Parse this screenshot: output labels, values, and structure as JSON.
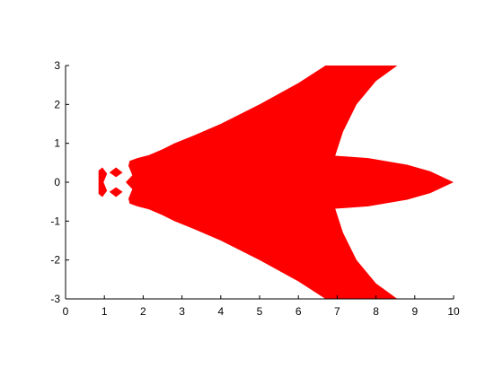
{
  "chart_data": {
    "type": "area",
    "title": "",
    "xlabel": "",
    "ylabel": "",
    "xlim": [
      0,
      10
    ],
    "ylim": [
      -3,
      3
    ],
    "grid": false,
    "legend": "none",
    "fill_color": "#ff0000",
    "x_ticks": [
      0,
      1,
      2,
      3,
      4,
      5,
      6,
      7,
      8,
      9,
      10
    ],
    "x_tick_labels": [
      "0",
      "1",
      "2",
      "3",
      "4",
      "5",
      "6",
      "7",
      "8",
      "9",
      "10"
    ],
    "y_ticks": [
      3,
      2,
      1,
      0,
      -1,
      -2,
      -3
    ],
    "y_tick_labels": [
      "3",
      "2",
      "1",
      "0",
      "-1",
      "-2",
      "-3"
    ],
    "regions": [
      {
        "name": "main-body",
        "points": [
          [
            1.55,
            0.0
          ],
          [
            1.72,
            0.18
          ],
          [
            1.62,
            0.42
          ],
          [
            1.65,
            0.55
          ],
          [
            1.85,
            0.62
          ],
          [
            2.15,
            0.7
          ],
          [
            2.5,
            0.85
          ],
          [
            2.8,
            1.0
          ],
          [
            3.3,
            1.2
          ],
          [
            4.0,
            1.5
          ],
          [
            5.0,
            2.0
          ],
          [
            6.0,
            2.55
          ],
          [
            6.7,
            3.0
          ],
          [
            8.55,
            3.0
          ],
          [
            8.0,
            2.6
          ],
          [
            7.5,
            2.0
          ],
          [
            7.15,
            1.3
          ],
          [
            6.95,
            0.68
          ],
          [
            7.8,
            0.62
          ],
          [
            8.8,
            0.45
          ],
          [
            9.4,
            0.28
          ],
          [
            10.0,
            0.0
          ],
          [
            9.4,
            -0.28
          ],
          [
            8.8,
            -0.45
          ],
          [
            7.8,
            -0.62
          ],
          [
            6.95,
            -0.68
          ],
          [
            7.15,
            -1.3
          ],
          [
            7.5,
            -2.0
          ],
          [
            8.0,
            -2.6
          ],
          [
            8.55,
            -3.0
          ],
          [
            6.7,
            -3.0
          ],
          [
            6.0,
            -2.55
          ],
          [
            5.0,
            -2.0
          ],
          [
            4.0,
            -1.5
          ],
          [
            3.3,
            -1.2
          ],
          [
            2.8,
            -1.0
          ],
          [
            2.5,
            -0.85
          ],
          [
            2.15,
            -0.7
          ],
          [
            1.85,
            -0.62
          ],
          [
            1.65,
            -0.55
          ],
          [
            1.62,
            -0.42
          ],
          [
            1.72,
            -0.18
          ]
        ]
      },
      {
        "name": "left-lobe",
        "points": [
          [
            0.85,
            0.3
          ],
          [
            0.95,
            0.38
          ],
          [
            1.07,
            0.22
          ],
          [
            0.98,
            0.0
          ],
          [
            1.07,
            -0.22
          ],
          [
            0.95,
            -0.38
          ],
          [
            0.85,
            -0.3
          ]
        ]
      },
      {
        "name": "upper-diamond",
        "points": [
          [
            1.3,
            0.38
          ],
          [
            1.47,
            0.25
          ],
          [
            1.3,
            0.13
          ],
          [
            1.13,
            0.25
          ]
        ]
      },
      {
        "name": "lower-diamond",
        "points": [
          [
            1.3,
            -0.13
          ],
          [
            1.47,
            -0.25
          ],
          [
            1.3,
            -0.38
          ],
          [
            1.13,
            -0.25
          ]
        ]
      }
    ]
  }
}
